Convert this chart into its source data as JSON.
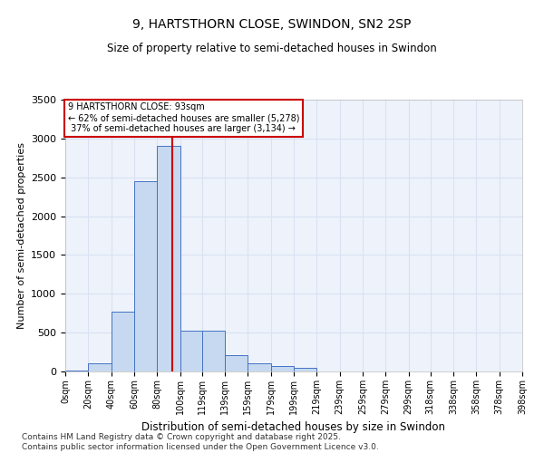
{
  "title_line1": "9, HARTSTHORN CLOSE, SWINDON, SN2 2SP",
  "title_line2": "Size of property relative to semi-detached houses in Swindon",
  "xlabel": "Distribution of semi-detached houses by size in Swindon",
  "ylabel": "Number of semi-detached properties",
  "property_size": 93,
  "property_label": "9 HARTSTHORN CLOSE: 93sqm",
  "pct_smaller": 62,
  "n_smaller": 5278,
  "pct_larger": 37,
  "n_larger": 3134,
  "bin_labels": [
    "0sqm",
    "20sqm",
    "40sqm",
    "60sqm",
    "80sqm",
    "100sqm",
    "119sqm",
    "139sqm",
    "159sqm",
    "179sqm",
    "199sqm",
    "219sqm",
    "239sqm",
    "259sqm",
    "279sqm",
    "299sqm",
    "318sqm",
    "338sqm",
    "358sqm",
    "378sqm",
    "398sqm"
  ],
  "bin_edges": [
    0,
    20,
    40,
    60,
    80,
    100,
    119,
    139,
    159,
    179,
    199,
    219,
    239,
    259,
    279,
    299,
    318,
    338,
    358,
    378,
    398
  ],
  "bar_heights": [
    10,
    100,
    770,
    2450,
    2900,
    530,
    520,
    210,
    100,
    70,
    45,
    0,
    0,
    0,
    0,
    0,
    0,
    0,
    0,
    0
  ],
  "bar_color": "#c6d9f0",
  "bar_edge_color": "#4472c4",
  "vline_color": "#cc0000",
  "vline_x": 93,
  "annotation_box_color": "#cc0000",
  "grid_color": "#d9e1f2",
  "background_color": "#eef3fb",
  "ylim": [
    0,
    3500
  ],
  "yticks": [
    0,
    500,
    1000,
    1500,
    2000,
    2500,
    3000,
    3500
  ],
  "footnote": "Contains HM Land Registry data © Crown copyright and database right 2025.\nContains public sector information licensed under the Open Government Licence v3.0."
}
